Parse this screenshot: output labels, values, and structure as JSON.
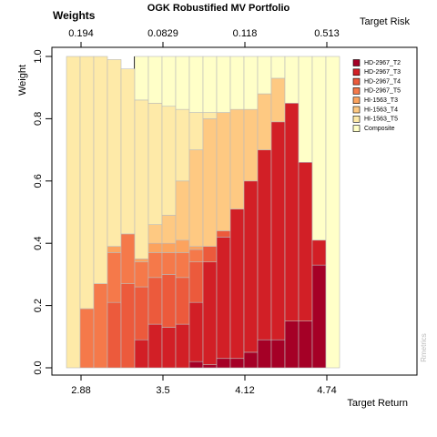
{
  "chart_data": {
    "type": "stacked_bar",
    "title": "OGK Robustified MV Portfolio",
    "subtitle": "Weights",
    "x_label": "Target Return",
    "top_axis_label": "Target Risk",
    "y_label": "Weight",
    "watermark": "Rmetrics",
    "categories": [
      null,
      "2.88",
      null,
      null,
      null,
      null,
      null,
      "3.5",
      null,
      null,
      null,
      null,
      null,
      "4.12",
      null,
      null,
      null,
      null,
      null,
      "4.74"
    ],
    "top_labels": [
      null,
      "0.194",
      null,
      null,
      null,
      null,
      null,
      "0.0829",
      null,
      null,
      null,
      null,
      null,
      "0.118",
      null,
      null,
      null,
      null,
      null,
      "0.513"
    ],
    "ylim": [
      0,
      1
    ],
    "yticks": [
      {
        "value": 0,
        "label": "0.0"
      },
      0.2,
      0.4,
      0.6,
      0.8,
      {
        "value": 1,
        "label": "1.0"
      }
    ],
    "series": [
      {
        "name": "HD-2967_T2",
        "color": "#a50026",
        "values": [
          0,
          0,
          0,
          0,
          0,
          0,
          0,
          0,
          0,
          0.02,
          0.01,
          0.03,
          0.03,
          0.05,
          0.09,
          0.09,
          0.15,
          0.15,
          0.33,
          0
        ]
      },
      {
        "name": "HD-2967_T3",
        "color": "#d21f26",
        "values": [
          0,
          0,
          0,
          0,
          0,
          0.09,
          0.14,
          0.13,
          0.14,
          0.19,
          0.33,
          0.39,
          0.48,
          0.55,
          0.61,
          0.7,
          0.7,
          0.51,
          0.08,
          0
        ]
      },
      {
        "name": "HD-2967_T4",
        "color": "#ec5a3c",
        "values": [
          0,
          0,
          0,
          0.21,
          0.27,
          0.17,
          0.15,
          0.17,
          0.15,
          0.13,
          0.05,
          0.02,
          0,
          0,
          0,
          0,
          0,
          0,
          0,
          0
        ]
      },
      {
        "name": "HD-2967_T5",
        "color": "#f5794a",
        "values": [
          0,
          0.19,
          0.27,
          0.16,
          0.16,
          0.08,
          0.08,
          0.07,
          0.08,
          0.04,
          0,
          0,
          0,
          0,
          0,
          0,
          0,
          0,
          0,
          0
        ]
      },
      {
        "name": "HI-1563_T3",
        "color": "#fca35e",
        "values": [
          0,
          0,
          0,
          0.02,
          0,
          0.01,
          0.03,
          0.03,
          0.04,
          0.01,
          0,
          0,
          0,
          0,
          0,
          0,
          0,
          0,
          0,
          0
        ]
      },
      {
        "name": "HI-1563_T4",
        "color": "#fec982",
        "values": [
          0,
          0,
          0,
          0,
          0,
          0,
          0.06,
          0.09,
          0.19,
          0.31,
          0.41,
          0.38,
          0.32,
          0.23,
          0.18,
          0.14,
          0,
          0,
          0,
          0
        ]
      },
      {
        "name": "HI-1563_T5",
        "color": "#feeaa8",
        "values": [
          1,
          0.81,
          0.73,
          0.6,
          0.53,
          0.51,
          0.39,
          0.35,
          0.23,
          0.12,
          0.02,
          0,
          0,
          0,
          0,
          0,
          0,
          0,
          0,
          0
        ]
      },
      {
        "name": "Composite",
        "color": "#ffffc8",
        "values": [
          0,
          0,
          0,
          0,
          0,
          0.14,
          0.15,
          0.16,
          0.17,
          0.18,
          0.18,
          0.18,
          0.17,
          0.17,
          0.12,
          0.07,
          0.15,
          0.34,
          0.59,
          1
        ]
      }
    ]
  }
}
